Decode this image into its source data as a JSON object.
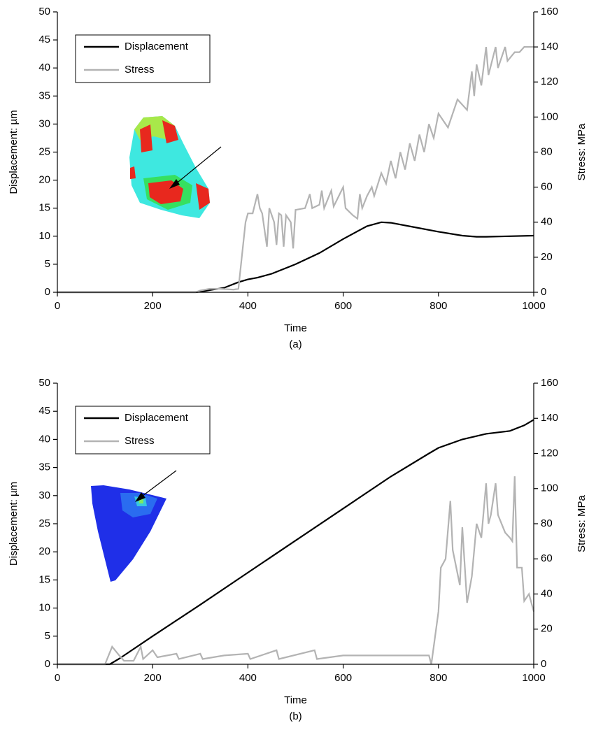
{
  "chart_data": [
    {
      "type": "line",
      "caption": "(a)",
      "xlabel": "Time",
      "ylabel": "Displacement: µm",
      "y2label": "Stress: MPa",
      "xlim": [
        0,
        1000
      ],
      "xticks": [
        0,
        200,
        400,
        600,
        800,
        1000
      ],
      "ylim": [
        0,
        50
      ],
      "yticks": [
        0,
        5,
        10,
        15,
        20,
        25,
        30,
        35,
        40,
        45,
        50
      ],
      "y2lim": [
        0,
        160
      ],
      "y2ticks": [
        0,
        20,
        40,
        60,
        80,
        100,
        120,
        140,
        160
      ],
      "legend": "upper left",
      "series": [
        {
          "name": "Displacement",
          "color": "#000000",
          "x": [
            0,
            290,
            300,
            350,
            380,
            400,
            420,
            450,
            500,
            550,
            600,
            650,
            680,
            700,
            750,
            800,
            850,
            880,
            900,
            950,
            1000
          ],
          "values": [
            0,
            0,
            0.1,
            0.8,
            1.8,
            2.3,
            2.6,
            3.3,
            5.0,
            7.0,
            9.5,
            11.8,
            12.5,
            12.4,
            11.6,
            10.8,
            10.1,
            9.9,
            9.9,
            10.0,
            10.1
          ]
        },
        {
          "name": "Stress",
          "color": "#b3b3b3",
          "axis": "y2",
          "x": [
            0,
            290,
            300,
            320,
            340,
            370,
            380,
            395,
            400,
            410,
            420,
            425,
            430,
            440,
            445,
            455,
            460,
            465,
            470,
            475,
            480,
            490,
            495,
            500,
            520,
            530,
            535,
            550,
            555,
            560,
            575,
            580,
            600,
            605,
            620,
            630,
            635,
            640,
            650,
            660,
            665,
            680,
            690,
            700,
            710,
            720,
            730,
            740,
            750,
            760,
            770,
            780,
            790,
            800,
            820,
            840,
            860,
            870,
            875,
            880,
            890,
            900,
            905,
            920,
            925,
            940,
            945,
            960,
            970,
            980,
            1000
          ],
          "values": [
            0,
            0,
            1,
            2,
            2,
            1.5,
            2,
            40,
            45,
            45,
            56,
            48,
            45,
            26,
            48,
            40,
            27,
            45,
            44,
            26,
            44,
            40,
            25,
            47,
            48,
            56,
            48,
            50,
            58,
            48,
            58,
            49,
            60,
            48,
            44,
            42,
            56,
            48,
            55,
            60,
            55,
            68,
            62,
            75,
            65,
            80,
            70,
            85,
            75,
            90,
            80,
            96,
            88,
            102,
            94,
            110,
            104,
            126,
            112,
            130,
            118,
            140,
            124,
            140,
            128,
            140,
            132,
            137,
            137,
            140,
            140
          ]
        }
      ]
    },
    {
      "type": "line",
      "caption": "(b)",
      "xlabel": "Time",
      "ylabel": "Displacement: µm",
      "y2label": "Stress: MPa",
      "xlim": [
        0,
        1000
      ],
      "xticks": [
        0,
        200,
        400,
        600,
        800,
        1000
      ],
      "ylim": [
        0,
        50
      ],
      "yticks": [
        0,
        5,
        10,
        15,
        20,
        25,
        30,
        35,
        40,
        45,
        50
      ],
      "y2lim": [
        0,
        160
      ],
      "y2ticks": [
        0,
        20,
        40,
        60,
        80,
        100,
        120,
        140,
        160
      ],
      "legend": "upper left",
      "series": [
        {
          "name": "Displacement",
          "color": "#000000",
          "x": [
            0,
            110,
            130,
            200,
            300,
            400,
            500,
            600,
            700,
            780,
            800,
            850,
            900,
            950,
            980,
            1000
          ],
          "values": [
            0,
            0,
            1,
            5.0,
            10.6,
            16.3,
            22.0,
            27.7,
            33.4,
            37.5,
            38.5,
            40.0,
            41.0,
            41.5,
            42.5,
            43.5
          ]
        },
        {
          "name": "Stress",
          "color": "#b3b3b3",
          "axis": "y2",
          "x": [
            0,
            90,
            100,
            115,
            130,
            140,
            160,
            175,
            180,
            200,
            210,
            250,
            255,
            300,
            305,
            350,
            400,
            405,
            460,
            465,
            540,
            545,
            600,
            700,
            780,
            785,
            800,
            805,
            815,
            825,
            830,
            845,
            850,
            860,
            870,
            880,
            890,
            900,
            905,
            910,
            920,
            925,
            940,
            950,
            955,
            960,
            965,
            975,
            980,
            990,
            1000
          ],
          "values": [
            0,
            0,
            0,
            10,
            5,
            2,
            2,
            10,
            3,
            8,
            4,
            6,
            3,
            6,
            3,
            5,
            6,
            3,
            8,
            3,
            8,
            3,
            5,
            5,
            5,
            0,
            30,
            55,
            60,
            93,
            65,
            45,
            78,
            35,
            50,
            80,
            72,
            103,
            80,
            85,
            103,
            85,
            75,
            72,
            70,
            107,
            55,
            55,
            36,
            40,
            30
          ]
        }
      ]
    }
  ]
}
